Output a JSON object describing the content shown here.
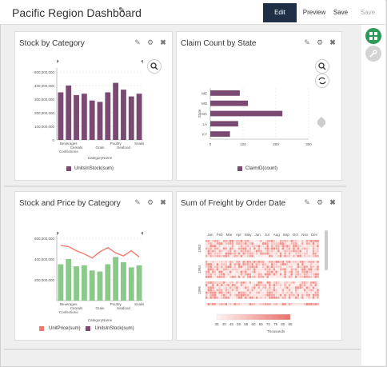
{
  "header": {
    "title": "Pacific Region Dashboard",
    "edit": "Edit",
    "preview": "Preview",
    "save": "Save",
    "save_as": "Save As..."
  },
  "colors": {
    "bar": "#7b4a73",
    "green": "#8ac98a",
    "line": "#f07a6f",
    "heat": "#f4a6a0"
  },
  "panels": {
    "p1": {
      "title": "Stock by Category"
    },
    "p2": {
      "title": "Claim Count by State"
    },
    "p3": {
      "title": "Stock and Price by Category"
    },
    "p4": {
      "title": "Sum of Freight by Order Date"
    }
  },
  "chart_data": [
    {
      "type": "bar",
      "title": "Stock by Category",
      "categories": [
        "Beverages",
        "Cereals",
        "Confections",
        "Grain",
        "Poultry",
        "Seafood",
        "Snails",
        "",
        "",
        "",
        ""
      ],
      "series": [
        {
          "name": "UnitsInStock(sum)",
          "values": [
            350000000,
            400000000,
            330000000,
            340000000,
            290000000,
            280000000,
            350000000,
            420000000,
            370000000,
            320000000,
            340000000
          ]
        }
      ],
      "ylim": [
        0,
        500000000
      ],
      "yticks": [
        "0",
        "100,000,000",
        "200,000,000",
        "300,000,000",
        "400,000,000",
        "500,000,000"
      ],
      "xlabel": "CategoryName",
      "xticklabels": [
        [
          "Beverages",
          0
        ],
        [
          "Cereals",
          1
        ],
        [
          "Confections",
          2
        ],
        [
          "Grain",
          4
        ],
        [
          "Poultry",
          6
        ],
        [
          "Seafood",
          7
        ],
        [
          "Snails",
          10
        ]
      ]
    },
    {
      "type": "bar",
      "title": "Claim Count by State",
      "categories": [
        "ME",
        "MD",
        "MA",
        "LA",
        "KY"
      ],
      "series": [
        {
          "name": "ClaimID(count)",
          "values": [
            90,
            115,
            220,
            85,
            60
          ]
        }
      ],
      "xlim": [
        0,
        300
      ],
      "xticks": [
        "0",
        "100",
        "200",
        "300"
      ],
      "ylabel": "State"
    },
    {
      "type": "bar",
      "title": "Stock and Price by Category",
      "categories": [
        "Beverages",
        "Cereals",
        "Confections",
        "Grain",
        "Poultry",
        "Seafood",
        "Snails",
        "",
        "",
        "",
        ""
      ],
      "series": [
        {
          "name": "UnitsInStock(sum)",
          "values": [
            350000000,
            400000000,
            330000000,
            340000000,
            290000000,
            280000000,
            350000000,
            420000000,
            370000000,
            320000000,
            340000000
          ]
        },
        {
          "name": "UnitPrice(sum)",
          "values": [
            530000000,
            520000000,
            480000000,
            450000000,
            410000000,
            470000000,
            510000000,
            460000000,
            430000000,
            480000000,
            420000000
          ]
        }
      ],
      "ylim": [
        0,
        600000000
      ],
      "yticks": [
        "200,000,000",
        "400,000,000",
        "600,000,000"
      ],
      "xlabel": "CategoryName"
    },
    {
      "type": "heatmap",
      "title": "Sum of Freight by Order Date",
      "months": [
        "Jan",
        "Feb",
        "Mar",
        "Apr",
        "May",
        "Jun",
        "Jul",
        "Aug",
        "Sep",
        "Oct",
        "Nov",
        "Dec"
      ],
      "years": [
        "1993",
        "1994",
        "1995"
      ],
      "scale": [
        "35",
        "40",
        "45",
        "50",
        "55",
        "60",
        "65",
        "70",
        "75",
        "80",
        "85"
      ],
      "scale_label": "Thousands"
    }
  ]
}
